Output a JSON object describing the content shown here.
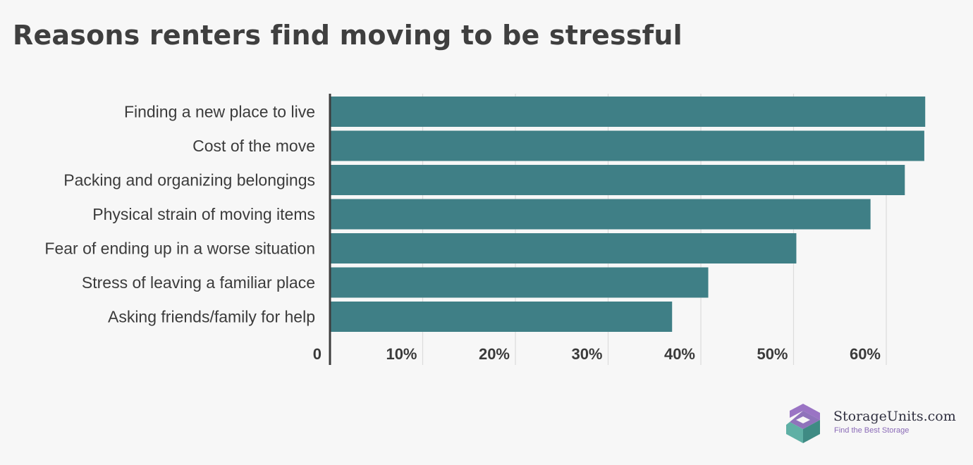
{
  "chart_data": {
    "type": "bar",
    "orientation": "horizontal",
    "title": "Reasons renters find moving to be stressful",
    "categories": [
      "Finding a new place to live",
      "Cost of the move",
      "Packing and organizing belongings",
      "Physical strain of moving items",
      "Fear of ending up in a worse situation",
      "Stress of leaving a familiar place",
      "Asking friends/family for help"
    ],
    "values": [
      64.2,
      64.1,
      62.0,
      58.3,
      50.3,
      40.8,
      36.9
    ],
    "x_ticks": [
      "0",
      "10%",
      "20%",
      "30%",
      "40%",
      "50%",
      "60%"
    ],
    "xlim": [
      0,
      66
    ],
    "grid": true,
    "bar_color": "#3f7f86"
  },
  "brand": {
    "name": "StorageUnits.com",
    "tagline": "Find the Best Storage"
  }
}
